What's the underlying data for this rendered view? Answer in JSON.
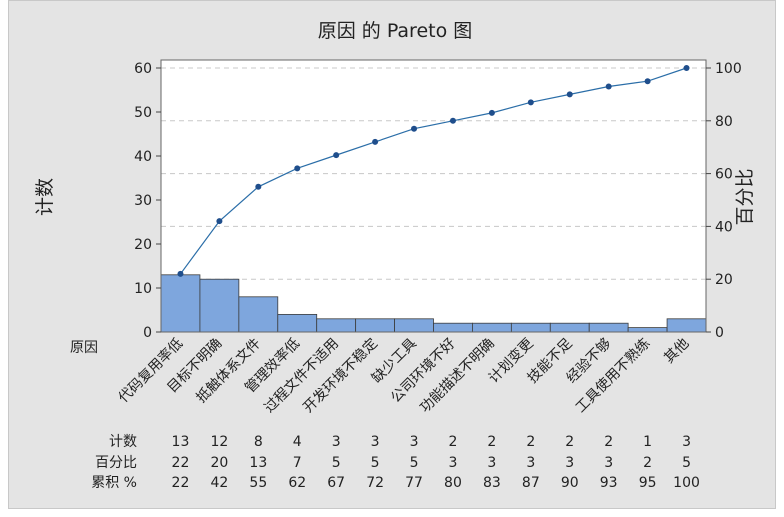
{
  "chart_data": {
    "type": "pareto",
    "title": "原因 的 Pareto 图",
    "ylabel_left": "计数",
    "ylabel_right": "百分比",
    "xlabel": "原因",
    "ylim_left": [
      0,
      60
    ],
    "ylim_right": [
      0,
      100
    ],
    "yticks_left": [
      0,
      10,
      20,
      30,
      40,
      50,
      60
    ],
    "yticks_right": [
      0,
      20,
      40,
      60,
      80,
      100
    ],
    "categories": [
      "代码复用率低",
      "目标不明确",
      "抵触体系文件",
      "管理效率低",
      "过程文件不适用",
      "开发环境不稳定",
      "缺少工具",
      "公司环境不好",
      "功能描述不明确",
      "计划变更",
      "技能不足",
      "经验不够",
      "工具使用不熟练",
      "其他"
    ],
    "counts": [
      13,
      12,
      8,
      4,
      3,
      3,
      3,
      2,
      2,
      2,
      2,
      2,
      1,
      3
    ],
    "percents": [
      22,
      20,
      13,
      7,
      5,
      5,
      5,
      3,
      3,
      3,
      3,
      3,
      2,
      5
    ],
    "cumulative": [
      22,
      42,
      55,
      62,
      67,
      72,
      77,
      80,
      83,
      87,
      90,
      93,
      95,
      100
    ],
    "table_labels": {
      "count": "计数",
      "percent": "百分比",
      "cumulative": "累积 %"
    },
    "grid": "horizontal dashed",
    "colors": {
      "bar": "#7ea6dd",
      "bar_edge": "#3c3c3c",
      "line": "#2b6ea8",
      "marker": "#1f4e8c",
      "frame": "#e4e4e4",
      "plot": "#ffffff"
    }
  }
}
